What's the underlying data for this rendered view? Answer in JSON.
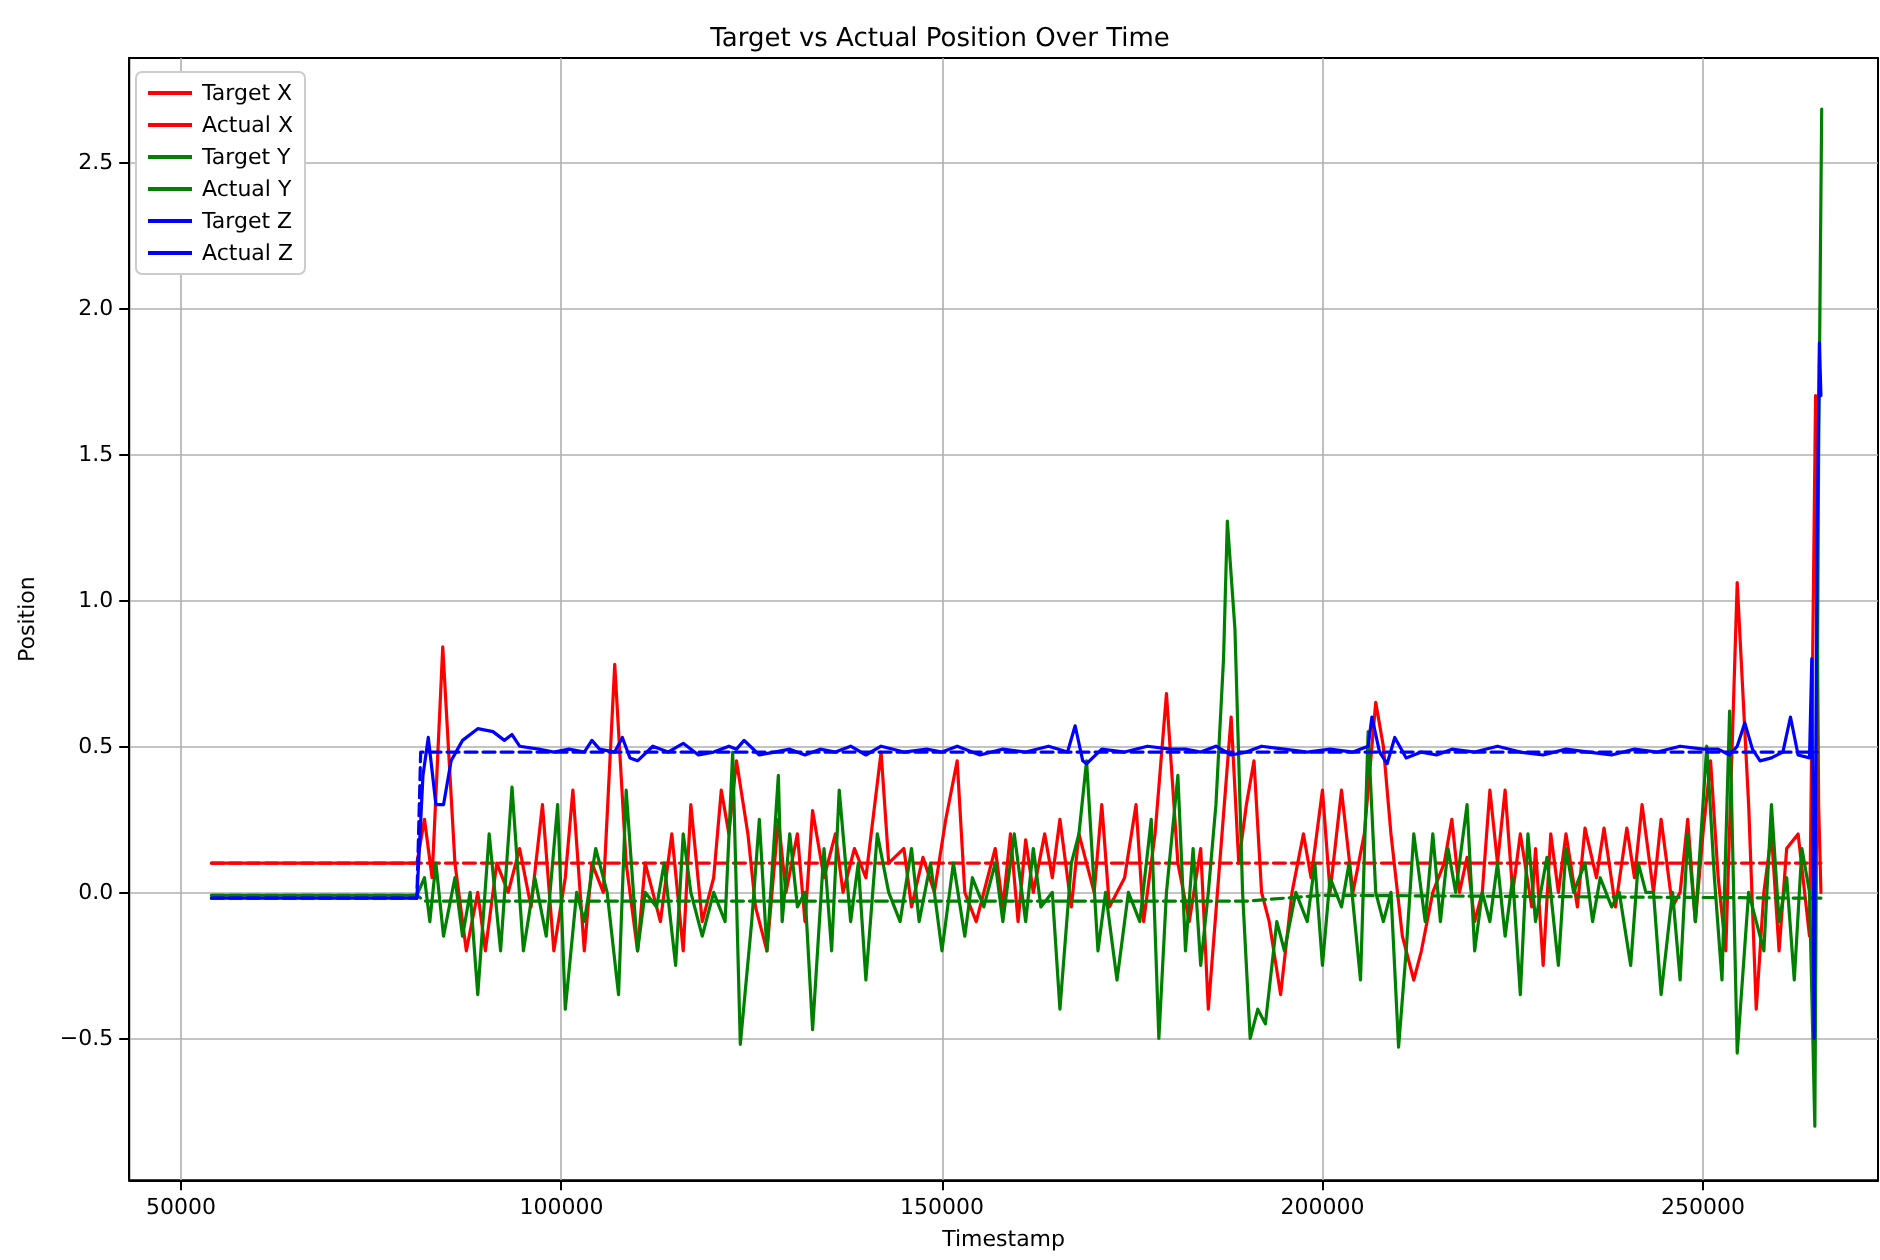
{
  "chart_data": {
    "type": "line",
    "title": "Target vs Actual Position Over Time",
    "xlabel": "Timestamp",
    "ylabel": "Position",
    "xlim": [
      43200,
      273000
    ],
    "xticks": [
      50000,
      100000,
      150000,
      200000,
      250000
    ],
    "ylim": [
      -0.985,
      2.855
    ],
    "yticks": [
      {
        "value": -0.5,
        "label": "−0.5"
      },
      {
        "value": 0,
        "label": "0.0"
      },
      0.5,
      {
        "value": 1,
        "label": "1.0"
      },
      1.5,
      {
        "value": 2,
        "label": "2.0"
      },
      2.5
    ],
    "grid": true,
    "legend": "top left",
    "series": [
      {
        "name": "Target X",
        "color": "#ff0000",
        "line_style": "dashed",
        "x": [
          54000,
          81000,
          150000,
          265500
        ],
        "values": [
          0.1,
          0.1,
          0.1,
          0.1
        ]
      },
      {
        "name": "Actual X",
        "color": "#ff0000",
        "line_style": "solid",
        "x": [
          54000,
          81000,
          82000,
          83000,
          84400,
          86000,
          87500,
          89000,
          90000,
          91500,
          93000,
          94500,
          96000,
          97500,
          99000,
          100500,
          101500,
          103000,
          104000,
          105500,
          107000,
          108500,
          110000,
          111000,
          113000,
          114500,
          116000,
          117000,
          118500,
          120000,
          121000,
          122000,
          123000,
          124500,
          125500,
          127000,
          128500,
          129500,
          131000,
          132000,
          133000,
          134500,
          136000,
          137000,
          138500,
          140000,
          142000,
          143000,
          145000,
          146000,
          147500,
          149000,
          150500,
          152000,
          153000,
          154500,
          156000,
          157000,
          158000,
          159000,
          160000,
          161000,
          162000,
          163500,
          164500,
          165500,
          167000,
          168000,
          170000,
          171000,
          172000,
          174000,
          175500,
          176500,
          178000,
          179500,
          181000,
          182500,
          184000,
          185000,
          186500,
          188000,
          189000,
          190000,
          191000,
          192000,
          193000,
          194500,
          196000,
          197500,
          198500,
          200000,
          201000,
          202500,
          204000,
          205500,
          207000,
          208000,
          209000,
          210500,
          212000,
          213000,
          214500,
          216000,
          217000,
          218000,
          219000,
          220000,
          221000,
          222000,
          223000,
          224000,
          225000,
          226000,
          227500,
          228000,
          229000,
          230000,
          231000,
          232000,
          233500,
          234500,
          236000,
          237000,
          238500,
          240000,
          241000,
          242000,
          243500,
          244500,
          246000,
          247000,
          248000,
          249000,
          250000,
          251000,
          252000,
          253000,
          254500,
          256000,
          257000,
          258000,
          259000,
          260000,
          261000,
          262500,
          264000,
          264800,
          265200,
          265500
        ],
        "values": [
          0.1,
          0.1,
          0.25,
          0.05,
          0.84,
          0.1,
          -0.2,
          0.0,
          -0.2,
          0.1,
          0.0,
          0.15,
          -0.05,
          0.3,
          -0.2,
          0.05,
          0.35,
          -0.2,
          0.1,
          0.0,
          0.78,
          0.1,
          -0.2,
          0.1,
          -0.1,
          0.2,
          -0.2,
          0.3,
          -0.1,
          0.05,
          0.35,
          0.2,
          0.45,
          0.2,
          -0.05,
          -0.2,
          0.25,
          0.0,
          0.2,
          -0.1,
          0.28,
          0.05,
          0.2,
          0.0,
          0.15,
          0.05,
          0.48,
          0.1,
          0.15,
          -0.05,
          0.12,
          0.0,
          0.25,
          0.45,
          0.0,
          -0.1,
          0.05,
          0.15,
          -0.05,
          0.2,
          -0.1,
          0.18,
          0.0,
          0.2,
          0.05,
          0.25,
          -0.05,
          0.2,
          0.0,
          0.3,
          -0.05,
          0.05,
          0.3,
          -0.1,
          0.2,
          0.68,
          0.1,
          -0.1,
          0.15,
          -0.4,
          0.1,
          0.6,
          0.1,
          0.3,
          0.45,
          0.0,
          -0.1,
          -0.35,
          0.0,
          0.2,
          0.05,
          0.35,
          0.0,
          0.35,
          0.0,
          0.2,
          0.65,
          0.5,
          0.2,
          -0.15,
          -0.3,
          -0.2,
          0.0,
          0.1,
          0.25,
          0.0,
          0.12,
          -0.1,
          0.0,
          0.35,
          0.1,
          0.35,
          0.0,
          0.2,
          -0.05,
          0.15,
          -0.25,
          0.2,
          0.0,
          0.2,
          -0.05,
          0.22,
          0.05,
          0.22,
          -0.05,
          0.22,
          0.05,
          0.3,
          0.0,
          0.25,
          -0.05,
          0.0,
          0.25,
          -0.1,
          0.2,
          0.45,
          0.05,
          -0.2,
          1.06,
          0.3,
          -0.4,
          0.0,
          0.2,
          -0.2,
          0.15,
          0.2,
          -0.15,
          1.7,
          0.3,
          0.0
        ]
      },
      {
        "name": "Target Y",
        "color": "#008000",
        "line_style": "dashed",
        "x": [
          54000,
          81000,
          82000,
          150000,
          190000,
          200000,
          265500
        ],
        "values": [
          -0.01,
          -0.01,
          -0.03,
          -0.03,
          -0.03,
          -0.01,
          -0.02
        ]
      },
      {
        "name": "Actual Y",
        "color": "#008000",
        "line_style": "solid",
        "x": [
          54000,
          81000,
          82000,
          82700,
          83500,
          84500,
          86000,
          87000,
          88000,
          89000,
          90500,
          92000,
          93500,
          95000,
          96500,
          98000,
          99500,
          100500,
          102000,
          103000,
          104500,
          106000,
          107500,
          108500,
          110000,
          111000,
          112500,
          113500,
          115000,
          116000,
          117000,
          118500,
          120000,
          121500,
          122500,
          123500,
          125000,
          126000,
          127000,
          128500,
          129000,
          130000,
          131000,
          132000,
          133000,
          134500,
          135500,
          136500,
          138000,
          139000,
          140000,
          141500,
          143000,
          144500,
          146000,
          147000,
          148500,
          150000,
          151500,
          153000,
          154000,
          155500,
          157000,
          158000,
          159500,
          161000,
          162000,
          163000,
          164500,
          165500,
          167000,
          168000,
          169000,
          170500,
          171500,
          173000,
          174500,
          176000,
          177500,
          178500,
          179500,
          181000,
          182000,
          183000,
          184000,
          185000,
          186000,
          187000,
          187500,
          188500,
          189500,
          190500,
          191500,
          192500,
          194000,
          195000,
          196500,
          198000,
          199000,
          200000,
          201000,
          202500,
          203500,
          205000,
          206000,
          207000,
          208000,
          209000,
          210000,
          211000,
          212000,
          213500,
          214500,
          215500,
          216500,
          217500,
          219000,
          220000,
          221000,
          222000,
          223000,
          224000,
          225000,
          226000,
          227000,
          228000,
          229500,
          231000,
          232000,
          233000,
          234500,
          235500,
          236500,
          238000,
          239000,
          240500,
          241500,
          242500,
          243500,
          244500,
          246000,
          247000,
          248000,
          249000,
          250500,
          251500,
          252500,
          253500,
          254500,
          256000,
          257000,
          258000,
          259000,
          260000,
          261000,
          262000,
          263000,
          264000,
          264700,
          265200,
          265600
        ],
        "values": [
          -0.01,
          -0.01,
          0.05,
          -0.1,
          0.1,
          -0.15,
          0.05,
          -0.15,
          0.0,
          -0.35,
          0.2,
          -0.2,
          0.36,
          -0.2,
          0.05,
          -0.15,
          0.3,
          -0.4,
          0.0,
          -0.1,
          0.15,
          0.0,
          -0.35,
          0.35,
          -0.2,
          0.0,
          -0.05,
          0.1,
          -0.25,
          0.2,
          0.0,
          -0.15,
          0.0,
          -0.1,
          0.48,
          -0.52,
          -0.1,
          0.25,
          -0.2,
          0.4,
          -0.1,
          0.2,
          -0.05,
          0.0,
          -0.47,
          0.15,
          -0.2,
          0.35,
          -0.1,
          0.1,
          -0.3,
          0.2,
          0.0,
          -0.1,
          0.15,
          -0.1,
          0.1,
          -0.2,
          0.1,
          -0.15,
          0.05,
          -0.05,
          0.1,
          -0.1,
          0.2,
          -0.1,
          0.15,
          -0.05,
          0.0,
          -0.4,
          0.1,
          0.2,
          0.45,
          -0.2,
          0.0,
          -0.3,
          0.0,
          -0.1,
          0.25,
          -0.5,
          0.0,
          0.4,
          -0.2,
          0.15,
          -0.25,
          0.0,
          0.3,
          0.8,
          1.27,
          0.9,
          0.0,
          -0.5,
          -0.4,
          -0.45,
          -0.1,
          -0.2,
          0.0,
          -0.1,
          0.1,
          -0.25,
          0.05,
          -0.05,
          0.1,
          -0.3,
          0.55,
          0.0,
          -0.1,
          0.0,
          -0.53,
          -0.2,
          0.2,
          -0.1,
          0.2,
          -0.1,
          0.15,
          0.0,
          0.3,
          -0.2,
          0.0,
          -0.1,
          0.1,
          -0.15,
          0.05,
          -0.35,
          0.2,
          -0.1,
          0.12,
          -0.25,
          0.15,
          0.0,
          0.1,
          -0.1,
          0.05,
          -0.05,
          0.0,
          -0.25,
          0.1,
          0.0,
          0.0,
          -0.35,
          0.0,
          -0.3,
          0.2,
          -0.1,
          0.5,
          0.05,
          -0.3,
          0.62,
          -0.55,
          0.0,
          -0.1,
          -0.2,
          0.3,
          -0.1,
          0.05,
          -0.3,
          0.15,
          0.0,
          -0.8,
          1.5,
          2.68
        ]
      },
      {
        "name": "Target Z",
        "color": "#0000ff",
        "line_style": "dashed",
        "x": [
          54000,
          81000,
          81500,
          150000,
          265000
        ],
        "values": [
          -0.02,
          -0.02,
          0.48,
          0.48,
          0.48
        ]
      },
      {
        "name": "Actual Z",
        "color": "#0000ff",
        "line_style": "solid",
        "x": [
          54000,
          81000,
          81800,
          82500,
          83500,
          84500,
          85500,
          87000,
          89000,
          91000,
          92500,
          93500,
          94500,
          97000,
          99000,
          101000,
          103000,
          104000,
          105000,
          107000,
          108000,
          109000,
          110000,
          112000,
          114000,
          116000,
          118000,
          120000,
          122000,
          123000,
          124000,
          126000,
          128000,
          130000,
          132000,
          134000,
          136000,
          138000,
          140000,
          142000,
          145000,
          148000,
          150000,
          152000,
          155000,
          158000,
          161000,
          164000,
          166500,
          167500,
          168500,
          169000,
          171000,
          174000,
          177000,
          180000,
          182000,
          184000,
          186000,
          188000,
          190000,
          192000,
          195000,
          198000,
          201000,
          204000,
          206000,
          206500,
          207500,
          208500,
          209500,
          211000,
          213000,
          215000,
          217000,
          220000,
          223000,
          226000,
          229000,
          232000,
          235000,
          238000,
          241000,
          244000,
          247000,
          250000,
          252000,
          253500,
          254500,
          255500,
          256500,
          257500,
          259000,
          260500,
          261500,
          262500,
          264000,
          264300,
          264600,
          265000,
          265300,
          265500
        ],
        "values": [
          -0.02,
          -0.02,
          0.4,
          0.53,
          0.3,
          0.3,
          0.45,
          0.52,
          0.56,
          0.55,
          0.52,
          0.54,
          0.5,
          0.49,
          0.48,
          0.49,
          0.48,
          0.52,
          0.49,
          0.48,
          0.53,
          0.46,
          0.45,
          0.5,
          0.48,
          0.51,
          0.47,
          0.48,
          0.5,
          0.49,
          0.52,
          0.47,
          0.48,
          0.49,
          0.47,
          0.49,
          0.48,
          0.5,
          0.47,
          0.5,
          0.48,
          0.49,
          0.48,
          0.5,
          0.47,
          0.49,
          0.48,
          0.5,
          0.48,
          0.57,
          0.45,
          0.44,
          0.49,
          0.48,
          0.5,
          0.49,
          0.49,
          0.48,
          0.5,
          0.47,
          0.48,
          0.5,
          0.49,
          0.48,
          0.49,
          0.48,
          0.5,
          0.6,
          0.48,
          0.44,
          0.53,
          0.46,
          0.48,
          0.47,
          0.49,
          0.48,
          0.5,
          0.48,
          0.47,
          0.49,
          0.48,
          0.47,
          0.49,
          0.48,
          0.5,
          0.49,
          0.49,
          0.47,
          0.5,
          0.58,
          0.49,
          0.45,
          0.46,
          0.48,
          0.6,
          0.47,
          0.46,
          0.8,
          -0.5,
          1.2,
          1.88,
          1.7
        ]
      }
    ]
  }
}
